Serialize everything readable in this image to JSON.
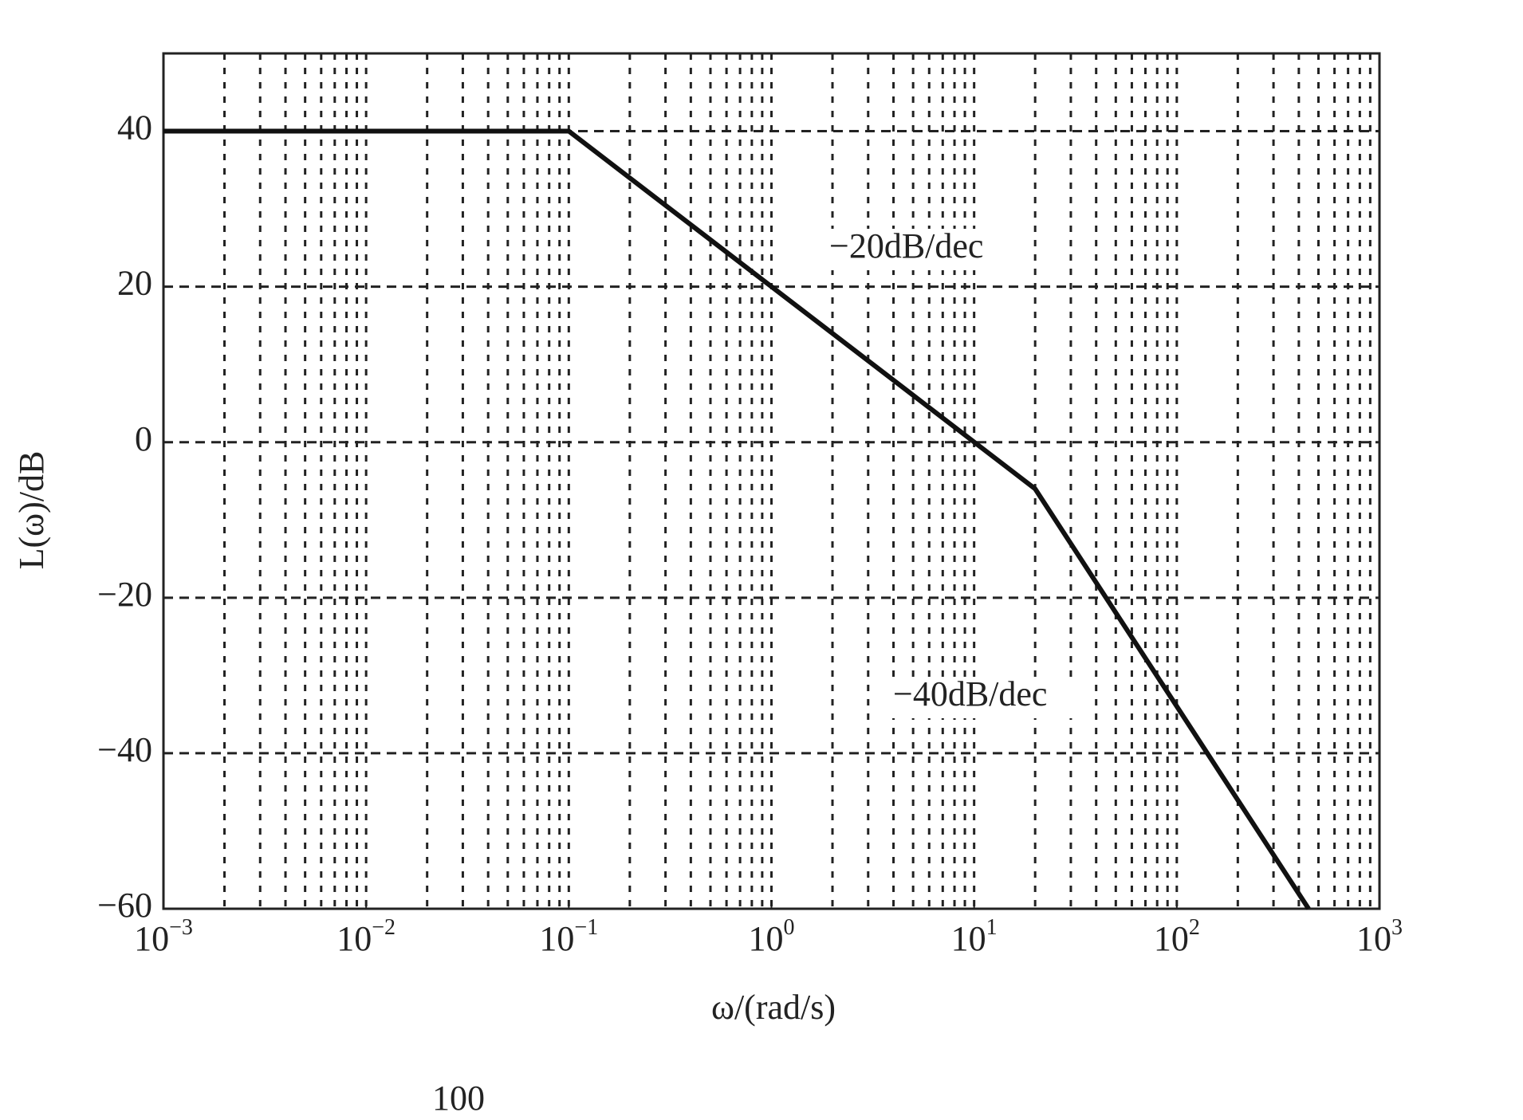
{
  "chart_data": {
    "type": "line",
    "x_label": "ω/(rad/s)",
    "y_label": "L(ω)/dB",
    "xscale": "log",
    "grid": true,
    "minor_grid": true,
    "xlim": [
      0.001,
      1000
    ],
    "xticks": [
      {
        "value": 0.001,
        "label": "10",
        "exponent": "−3"
      },
      {
        "value": 0.01,
        "label": "10",
        "exponent": "−2"
      },
      {
        "value": 0.1,
        "label": "10",
        "exponent": "−1"
      },
      {
        "value": 1,
        "label": "10",
        "exponent": "0"
      },
      {
        "value": 10,
        "label": "10",
        "exponent": "1"
      },
      {
        "value": 100,
        "label": "10",
        "exponent": "2"
      },
      {
        "value": 1000,
        "label": "10",
        "exponent": "3"
      }
    ],
    "ylim": [
      -60,
      50
    ],
    "yticks": [
      {
        "value": -60,
        "label": "−60"
      },
      {
        "value": -40,
        "label": "−40"
      },
      {
        "value": -20,
        "label": "−20"
      },
      0,
      20,
      40
    ],
    "series": [
      {
        "name": "L(ω)",
        "color": "#111111",
        "x": [
          0.001,
          0.1,
          20,
          447
        ],
        "values": [
          40,
          40,
          -6,
          -60
        ]
      }
    ],
    "annotations": [
      "−20dB/dec",
      "−40dB/dec"
    ]
  },
  "footer_text": "100"
}
